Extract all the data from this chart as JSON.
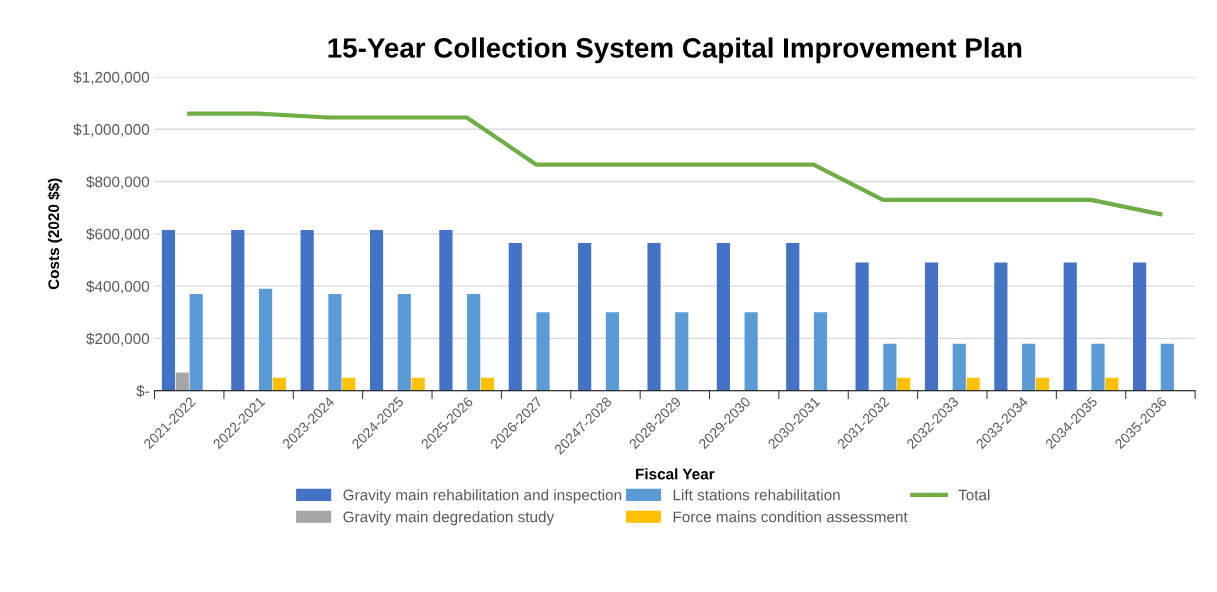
{
  "chart_data": {
    "type": "bar",
    "title": "15-Year Collection System Capital Improvement Plan",
    "xlabel": "Fiscal Year",
    "ylabel": "Costs (2020 $$)",
    "categories": [
      "2021-2022",
      "2022-2021",
      "2023-2024",
      "2024-2025",
      "2025-2026",
      "2026-2027",
      "20247-2028",
      "2028-2029",
      "2029-2030",
      "2030-2031",
      "2031-2032",
      "2032-2033",
      "2033-2034",
      "2034-2035",
      "2035-2036"
    ],
    "series": [
      {
        "name": "Gravity main rehabilitation and inspection",
        "color": "#4472c4",
        "values": [
          615000,
          615000,
          615000,
          615000,
          615000,
          565000,
          565000,
          565000,
          565000,
          565000,
          490000,
          490000,
          490000,
          490000,
          490000
        ]
      },
      {
        "name": "Gravity main degredation study",
        "color": "#a5a5a5",
        "values": [
          70000,
          null,
          null,
          null,
          null,
          null,
          null,
          null,
          null,
          null,
          null,
          null,
          null,
          null,
          null
        ]
      },
      {
        "name": "Lift stations rehabilitation",
        "color": "#5b9bd5",
        "values": [
          370000,
          390000,
          370000,
          370000,
          370000,
          300000,
          300000,
          300000,
          300000,
          300000,
          180000,
          180000,
          180000,
          180000,
          180000
        ]
      },
      {
        "name": "Force mains condition assessment",
        "color": "#ffc000",
        "values": [
          null,
          50000,
          50000,
          50000,
          50000,
          null,
          null,
          null,
          null,
          null,
          50000,
          50000,
          50000,
          50000,
          null
        ]
      },
      {
        "name": "Total",
        "type": "line",
        "color": "#70ad47",
        "values": [
          1060000,
          1060000,
          1045000,
          1045000,
          1045000,
          865000,
          865000,
          865000,
          865000,
          865000,
          730000,
          730000,
          730000,
          730000,
          675000
        ]
      }
    ],
    "ylim": [
      0,
      1200000
    ],
    "yticks": [
      {
        "value": 0,
        "label": "$-"
      },
      {
        "value": 200000,
        "label": "$200,000"
      },
      {
        "value": 400000,
        "label": "$400,000"
      },
      {
        "value": 600000,
        "label": "$600,000"
      },
      {
        "value": 800000,
        "label": "$800,000"
      },
      {
        "value": 1000000,
        "label": "$1,000,000"
      },
      {
        "value": 1200000,
        "label": "$1,200,000"
      }
    ],
    "grid": "y",
    "legend": "bottom",
    "marker": "none",
    "line_style": "solid"
  }
}
